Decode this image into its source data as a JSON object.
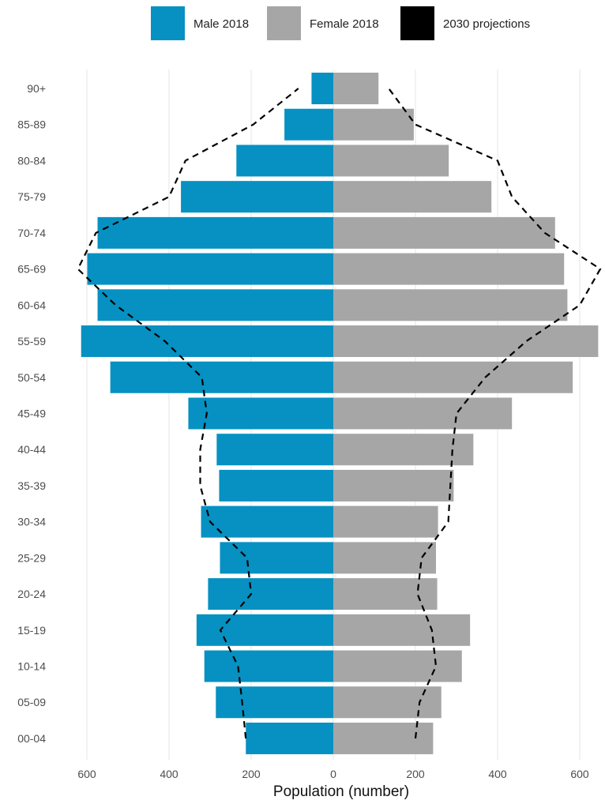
{
  "chart_data": {
    "type": "bar",
    "subtype": "population-pyramid",
    "title": "",
    "xlabel": "Population (number)",
    "ylabel": "",
    "xlim": [
      -650,
      650
    ],
    "x_ticks": [
      -600,
      -400,
      -200,
      0,
      200,
      400,
      600
    ],
    "x_tick_labels": [
      "600",
      "400",
      "200",
      "0",
      "200",
      "400",
      "600"
    ],
    "grid": true,
    "legend_position": "top",
    "categories": [
      "00-04",
      "05-09",
      "10-14",
      "15-19",
      "20-24",
      "25-29",
      "30-34",
      "35-39",
      "40-44",
      "45-49",
      "50-54",
      "55-59",
      "60-64",
      "65-69",
      "70-74",
      "75-79",
      "80-84",
      "85-89",
      "90+"
    ],
    "series": [
      {
        "name": "Male 2018",
        "kind": "bar",
        "side": "left",
        "color": "#0691c2",
        "values": [
          213,
          286,
          314,
          333,
          305,
          276,
          322,
          278,
          284,
          353,
          543,
          614,
          574,
          599,
          574,
          371,
          236,
          119,
          53
        ]
      },
      {
        "name": "Female 2018",
        "kind": "bar",
        "side": "right",
        "color": "#a6a6a6",
        "values": [
          243,
          263,
          313,
          333,
          253,
          250,
          255,
          293,
          341,
          435,
          583,
          645,
          570,
          562,
          540,
          385,
          281,
          196,
          110
        ]
      },
      {
        "name": "2030 projections",
        "kind": "dashed-line",
        "color": "#000000",
        "male_values": [
          213,
          222,
          232,
          275,
          200,
          210,
          300,
          324,
          324,
          308,
          320,
          410,
          530,
          622,
          578,
          400,
          360,
          195,
          85
        ],
        "female_values": [
          200,
          210,
          250,
          240,
          205,
          215,
          280,
          285,
          290,
          300,
          370,
          470,
          600,
          650,
          515,
          435,
          400,
          200,
          135
        ]
      }
    ]
  }
}
